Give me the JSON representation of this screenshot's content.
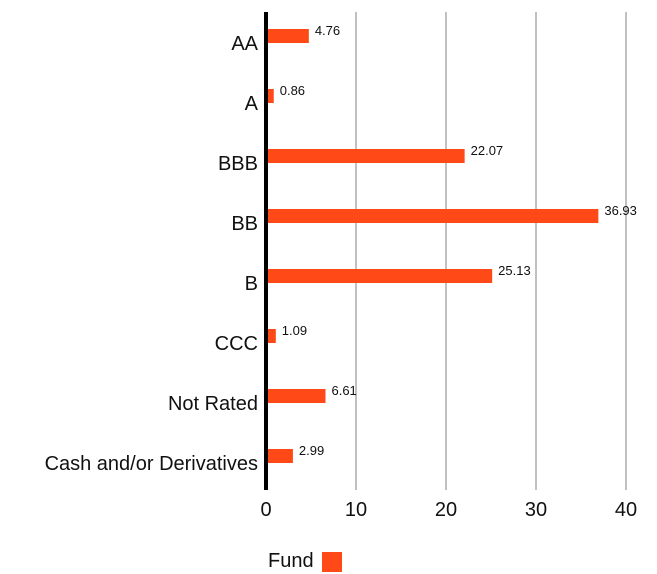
{
  "chart_data": {
    "type": "bar",
    "orientation": "horizontal",
    "categories": [
      "AA",
      "A",
      "BBB",
      "BB",
      "B",
      "CCC",
      "Not Rated",
      "Cash and/or Derivatives"
    ],
    "series": [
      {
        "name": "Fund",
        "values": [
          4.76,
          0.86,
          22.07,
          36.93,
          25.13,
          1.09,
          6.61,
          2.99
        ],
        "color": "#ff4a17"
      }
    ],
    "data_labels": [
      "4.76",
      "0.86",
      "22.07",
      "36.93",
      "25.13",
      "1.09",
      "6.61",
      "2.99"
    ],
    "xlim": [
      0,
      40
    ],
    "x_ticks": [
      0,
      10,
      20,
      30,
      40
    ],
    "x_tick_labels": [
      "0",
      "10",
      "20",
      "30",
      "40"
    ],
    "grid": "vertical",
    "legend_position": "bottom",
    "grid_color": "#c0c0c0",
    "axis_color": "#000000"
  },
  "legend": {
    "label": "Fund"
  }
}
